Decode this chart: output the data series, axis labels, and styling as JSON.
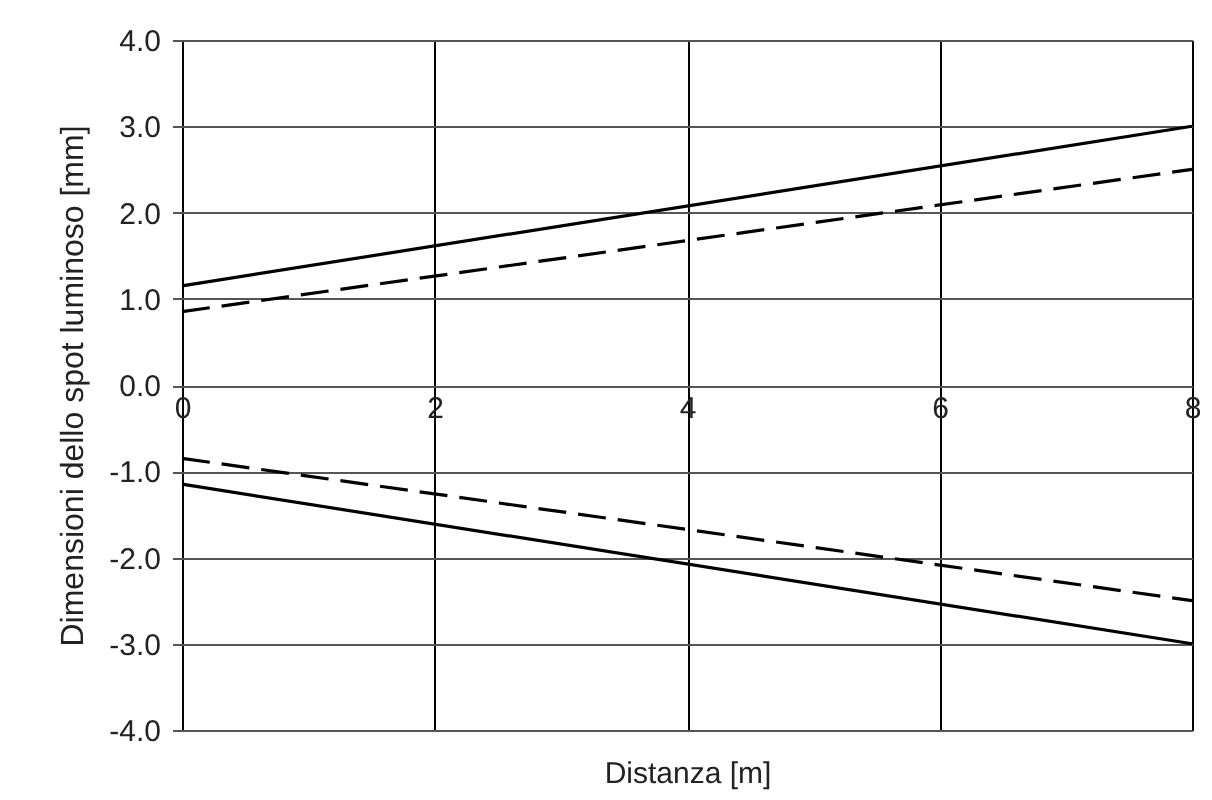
{
  "chart_data": {
    "type": "line",
    "xlabel": "Distanza [m]",
    "ylabel": "Dimensioni dello spot luminoso [mm]",
    "x": [
      0,
      8
    ],
    "series": [
      {
        "color": "#000000",
        "line_style": "solid",
        "values": [
          1.15,
          3.0
        ]
      },
      {
        "color": "#000000",
        "line_style": "dashed",
        "values": [
          0.85,
          2.5
        ]
      },
      {
        "color": "#000000",
        "line_style": "dashed",
        "values": [
          -0.85,
          -2.5
        ]
      },
      {
        "color": "#000000",
        "line_style": "solid",
        "values": [
          -1.15,
          -3.0
        ]
      }
    ],
    "xlim": [
      0,
      8
    ],
    "ylim": [
      -4,
      4
    ],
    "xticks": [
      0,
      2,
      4,
      6,
      8
    ],
    "yticks": [
      {
        "value": 4,
        "label": "4.0"
      },
      {
        "value": 3,
        "label": "3.0"
      },
      {
        "value": 2,
        "label": "2.0"
      },
      {
        "value": 1,
        "label": "1.0"
      },
      {
        "value": 0,
        "label": "0.0"
      },
      {
        "value": -1,
        "label": "-1.0"
      },
      {
        "value": -2,
        "label": "-2.0"
      },
      {
        "value": -3,
        "label": "-3.0"
      },
      {
        "value": -4,
        "label": "-4.0"
      }
    ],
    "grid": true
  }
}
